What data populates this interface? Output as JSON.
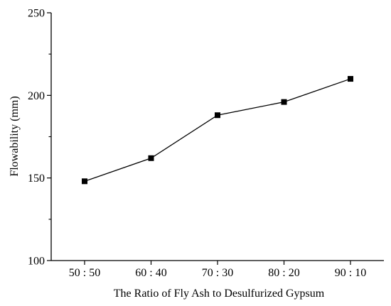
{
  "chart_data": {
    "type": "line",
    "title": "",
    "xlabel": "The Ratio of Fly Ash to Desulfurized Gypsum",
    "ylabel": "Flowability (mm)",
    "categories": [
      "50 : 50",
      "60 : 40",
      "70 : 30",
      "80 : 20",
      "90 : 10"
    ],
    "series": [
      {
        "values": [
          148,
          162,
          188,
          196,
          210
        ]
      }
    ],
    "ylim": [
      100,
      250
    ],
    "yticks": [
      100,
      150,
      200,
      250
    ],
    "grid": false,
    "legend": "none",
    "marker": "square",
    "color": "#000000"
  }
}
